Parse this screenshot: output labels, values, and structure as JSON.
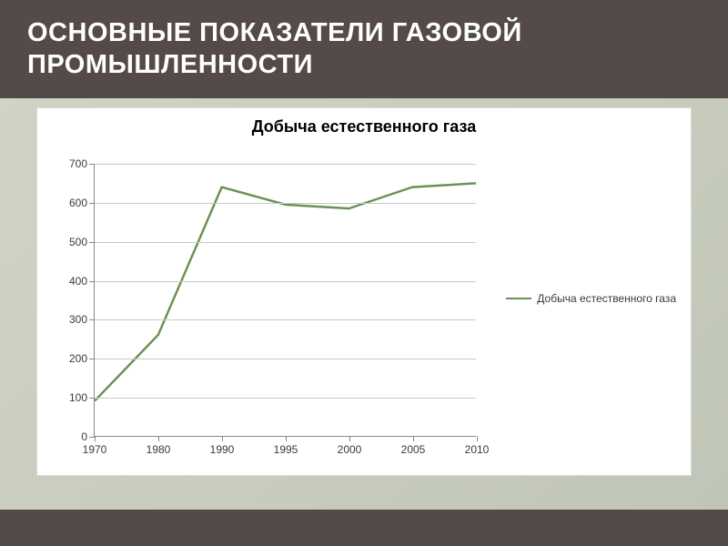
{
  "header": {
    "title": "ОСНОВНЫЕ ПОКАЗАТЕЛИ ГАЗОВОЙ ПРОМЫШЛЕННОСТИ"
  },
  "chart": {
    "type": "line",
    "title": "Добыча естественного газа",
    "title_fontsize": 18,
    "x_categories": [
      "1970",
      "1980",
      "1990",
      "1995",
      "2000",
      "2005",
      "2010"
    ],
    "series": [
      {
        "name": "Добыча естественного газа",
        "values": [
          90,
          260,
          640,
          595,
          585,
          640,
          650
        ],
        "color": "#6b9256",
        "line_width": 2.5,
        "marker": "none"
      }
    ],
    "ylim": [
      0,
      700
    ],
    "ytick_step": 100,
    "grid_color": "#c9c9c9",
    "axis_color": "#888888",
    "tick_font_size": 12,
    "tick_color": "#3a3a3a",
    "background_color": "#ffffff",
    "legend_position": "right"
  },
  "layout": {
    "header_bg": "#544b48",
    "header_fg": "#ffffff",
    "footer_bg": "#544b48",
    "content_bg": "#c9cdbf"
  }
}
